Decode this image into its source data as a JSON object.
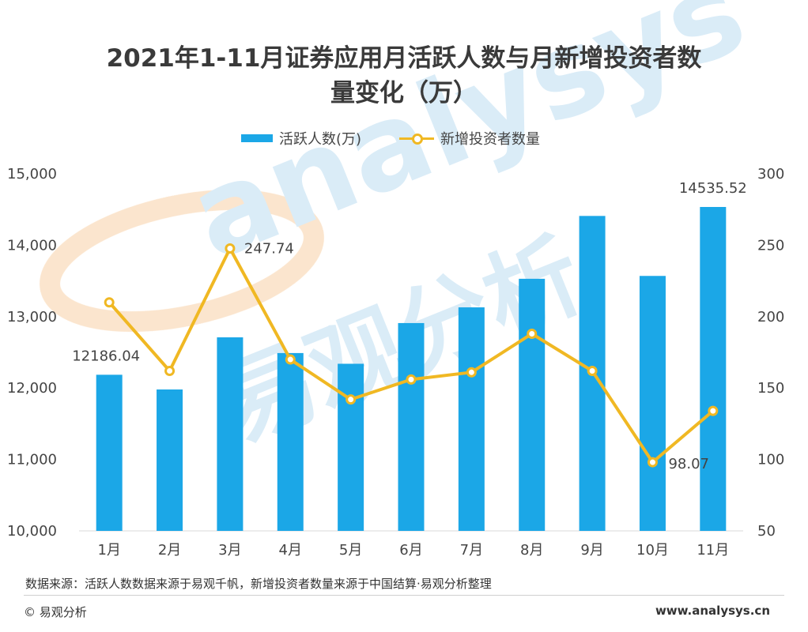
{
  "title_line1": "2021年1-11月证券应用月活跃人数与月新增投资者数",
  "title_line2": "量变化（万）",
  "legend": {
    "bar_label": "活跃人数(万)",
    "line_label": "新增投资者数量"
  },
  "colors": {
    "bar": "#1ba7e7",
    "line": "#f0b823",
    "axis_text": "#444444",
    "label_text": "#444444",
    "watermark_blue": "#d6eaf7",
    "watermark_orange": "#fbe3c9"
  },
  "watermark": {
    "logo_text": "analysys",
    "cn_text": "易观分析"
  },
  "chart_data": {
    "type": "bar",
    "title": "2021年1-11月证券应用月活跃人数与月新增投资者数量变化（万）",
    "categories": [
      "1月",
      "2月",
      "3月",
      "4月",
      "5月",
      "6月",
      "7月",
      "8月",
      "9月",
      "10月",
      "11月"
    ],
    "series": [
      {
        "name": "活跃人数(万)",
        "type": "bar",
        "axis": "left",
        "values": [
          12186.04,
          11980,
          12710,
          12490,
          12340,
          12910,
          13130,
          13530,
          14410,
          13570,
          14535.52
        ]
      },
      {
        "name": "新增投资者数量",
        "type": "line",
        "axis": "right",
        "values": [
          210,
          162,
          247.74,
          170,
          142,
          156,
          161,
          188,
          162,
          98.07,
          134
        ]
      }
    ],
    "data_labels": [
      {
        "series": 0,
        "index": 0,
        "text": "12186.04"
      },
      {
        "series": 0,
        "index": 10,
        "text": "14535.52"
      },
      {
        "series": 1,
        "index": 2,
        "text": "247.74"
      },
      {
        "series": 1,
        "index": 9,
        "text": "98.07"
      }
    ],
    "y_left": {
      "min": 10000,
      "max": 15000,
      "ticks": [
        10000,
        11000,
        12000,
        13000,
        14000,
        15000
      ],
      "tick_labels": [
        "10,000",
        "11,000",
        "12,000",
        "13,000",
        "14,000",
        "15,000"
      ]
    },
    "y_right": {
      "min": 50,
      "max": 300,
      "ticks": [
        50,
        100,
        150,
        200,
        250,
        300
      ],
      "tick_labels": [
        "50",
        "100",
        "150",
        "200",
        "250",
        "300"
      ]
    },
    "grid": false,
    "legend_position": "top"
  },
  "source_text": "数据来源：活跃人数数据来源于易观千帆，新增投资者数量来源于中国结算·易观分析整理",
  "footer": {
    "copyright": "© 易观分析",
    "url": "www.analysys.cn"
  }
}
